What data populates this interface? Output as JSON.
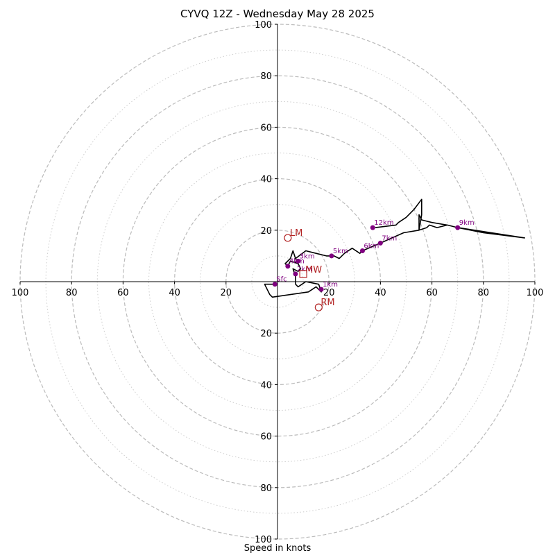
{
  "chart_data": {
    "type": "line",
    "subtype": "hodograph",
    "title": "CYVQ 12Z - Wednesday May 28 2025",
    "xlabel": "Speed in knots",
    "ylabel": "",
    "xlim": [
      -100,
      100
    ],
    "ylim": [
      -100,
      100
    ],
    "major_rings": [
      20,
      40,
      60,
      80,
      100
    ],
    "minor_rings": [
      10,
      30,
      50,
      70,
      90
    ],
    "axis_tick_labels": [
      "20",
      "40",
      "60",
      "80",
      "100"
    ],
    "grid": true,
    "colors": {
      "trace": "#000000",
      "height_markers": "#800080",
      "storm_motion": "#b22222",
      "major_grid": "#bbbbbb",
      "minor_grid": "#cccccc",
      "axes": "#000000"
    },
    "series": [
      {
        "points": [
          [
            -1,
            -1
          ],
          [
            -5,
            -1
          ],
          [
            -3,
            -5
          ],
          [
            -2,
            -6
          ],
          [
            12,
            -4
          ],
          [
            15,
            -2
          ],
          [
            17,
            -4
          ],
          [
            16,
            -1
          ],
          [
            11,
            0
          ],
          [
            8,
            -2
          ],
          [
            7,
            -1
          ],
          [
            7,
            2
          ],
          [
            6,
            5
          ],
          [
            8,
            4
          ],
          [
            9,
            5
          ],
          [
            8,
            7
          ],
          [
            7,
            9
          ],
          [
            6,
            12
          ],
          [
            5,
            9
          ],
          [
            3,
            7
          ],
          [
            4,
            6
          ],
          [
            5,
            8
          ],
          [
            8,
            7
          ],
          [
            7,
            9
          ],
          [
            7,
            9
          ],
          [
            11,
            12
          ],
          [
            15,
            11
          ],
          [
            19,
            10
          ],
          [
            22,
            10
          ],
          [
            24,
            9
          ],
          [
            26,
            11
          ],
          [
            29,
            13
          ],
          [
            32,
            11
          ],
          [
            33,
            12
          ],
          [
            40,
            15
          ],
          [
            49,
            19
          ],
          [
            55,
            20
          ],
          [
            55,
            26
          ],
          [
            56,
            24
          ],
          [
            60,
            23
          ],
          [
            66,
            22
          ],
          [
            70,
            21
          ],
          [
            80,
            19
          ],
          [
            96,
            17
          ],
          [
            70,
            21
          ],
          [
            66,
            22
          ],
          [
            62,
            21
          ],
          [
            59,
            22
          ],
          [
            58,
            21
          ],
          [
            55,
            20
          ],
          [
            56,
            26
          ],
          [
            56,
            32
          ],
          [
            53,
            28
          ],
          [
            50,
            25
          ],
          [
            47,
            23
          ],
          [
            46,
            22
          ],
          [
            38,
            21
          ]
        ]
      }
    ],
    "height_markers": [
      {
        "label": "Sfc",
        "u": -1,
        "v": -1
      },
      {
        "label": "1km",
        "u": 17,
        "v": -3
      },
      {
        "label": "2km",
        "u": 7,
        "v": 3
      },
      {
        "label": "3km",
        "u": 8,
        "v": 8
      },
      {
        "label": "4km",
        "u": 4,
        "v": 6
      },
      {
        "label": "5km",
        "u": 21,
        "v": 10
      },
      {
        "label": "6km",
        "u": 33,
        "v": 12
      },
      {
        "label": "7km",
        "u": 40,
        "v": 15
      },
      {
        "label": "9km",
        "u": 70,
        "v": 21
      },
      {
        "label": "12km",
        "u": 37,
        "v": 21
      }
    ],
    "storm_motion": [
      {
        "label": "LM",
        "u": 4,
        "v": 17,
        "shape": "circle"
      },
      {
        "label": "RM",
        "u": 16,
        "v": -10,
        "shape": "circle"
      },
      {
        "label": "MW",
        "u": 10,
        "v": 3,
        "shape": "square"
      }
    ]
  }
}
